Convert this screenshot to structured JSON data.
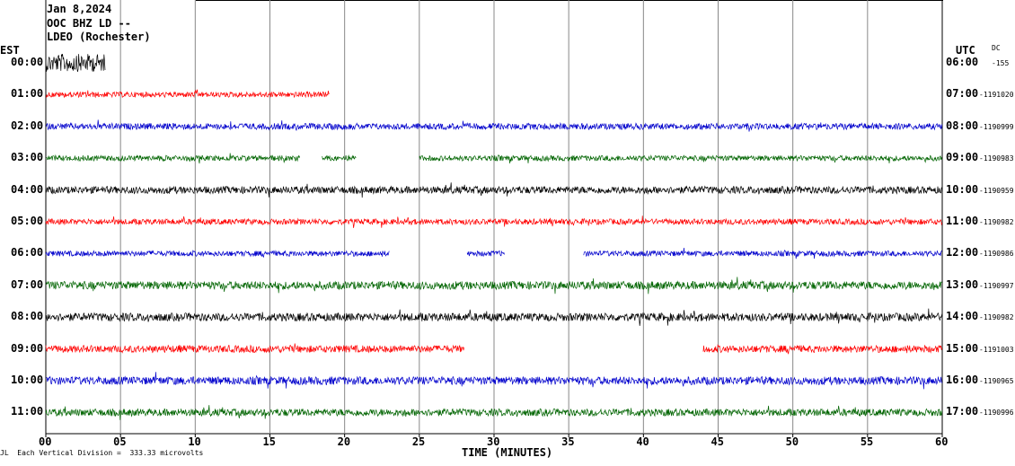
{
  "header": {
    "date": "Jan 8,2024",
    "station": "OOC BHZ LD --",
    "location": "LDEO (Rochester)"
  },
  "tz_left": "EST",
  "tz_right": "UTC",
  "dc_label": "DC",
  "x_axis_label": "TIME (MINUTES)",
  "footer": "Each Vertical Division =  333.33 microvolts",
  "colors": {
    "line_order": [
      "#000000",
      "#ff0000",
      "#0000cc",
      "#006400"
    ]
  },
  "chart_data": {
    "type": "line",
    "title": "Jan 8,2024",
    "xlabel": "TIME (MINUTES)",
    "xlim": [
      0,
      60
    ],
    "x_ticks": [
      "00",
      "05",
      "10",
      "15",
      "20",
      "25",
      "30",
      "35",
      "40",
      "45",
      "50",
      "55",
      "60"
    ],
    "grid": true,
    "rows": [
      {
        "est": "00:00",
        "utc": "06:00",
        "dc": "-155",
        "color": "#000000",
        "segments": [
          [
            0,
            4
          ]
        ],
        "amp": 1.0
      },
      {
        "est": "01:00",
        "utc": "07:00",
        "dc": "-1191020",
        "color": "#ff0000",
        "segments": [
          [
            0,
            19
          ]
        ],
        "amp": 0.3
      },
      {
        "est": "02:00",
        "utc": "08:00",
        "dc": "-1190999",
        "color": "#0000cc",
        "segments": [
          [
            0,
            60
          ]
        ],
        "amp": 0.35
      },
      {
        "est": "03:00",
        "utc": "09:00",
        "dc": "-1190983",
        "color": "#006400",
        "segments": [
          [
            0,
            17
          ],
          [
            18.5,
            20.8
          ],
          [
            25,
            60
          ]
        ],
        "amp": 0.3
      },
      {
        "est": "04:00",
        "utc": "10:00",
        "dc": "-1190959",
        "color": "#000000",
        "segments": [
          [
            0,
            60
          ]
        ],
        "amp": 0.4
      },
      {
        "est": "05:00",
        "utc": "11:00",
        "dc": "-1190982",
        "color": "#ff0000",
        "segments": [
          [
            0,
            60
          ]
        ],
        "amp": 0.32
      },
      {
        "est": "06:00",
        "utc": "12:00",
        "dc": "-1190986",
        "color": "#0000cc",
        "segments": [
          [
            0,
            23
          ],
          [
            28.2,
            30.7
          ],
          [
            36,
            60
          ]
        ],
        "amp": 0.3
      },
      {
        "est": "07:00",
        "utc": "13:00",
        "dc": "-1190997",
        "color": "#006400",
        "segments": [
          [
            0,
            60
          ]
        ],
        "amp": 0.45
      },
      {
        "est": "08:00",
        "utc": "14:00",
        "dc": "-1190982",
        "color": "#000000",
        "segments": [
          [
            0,
            60
          ]
        ],
        "amp": 0.45
      },
      {
        "est": "09:00",
        "utc": "15:00",
        "dc": "-1191003",
        "color": "#ff0000",
        "segments": [
          [
            0,
            28
          ],
          [
            44,
            60
          ]
        ],
        "amp": 0.4
      },
      {
        "est": "10:00",
        "utc": "16:00",
        "dc": "-1190965",
        "color": "#0000cc",
        "segments": [
          [
            0,
            60
          ]
        ],
        "amp": 0.45
      },
      {
        "est": "11:00",
        "utc": "17:00",
        "dc": "-1190996",
        "color": "#006400",
        "segments": [
          [
            0,
            60
          ]
        ],
        "amp": 0.4
      }
    ]
  }
}
